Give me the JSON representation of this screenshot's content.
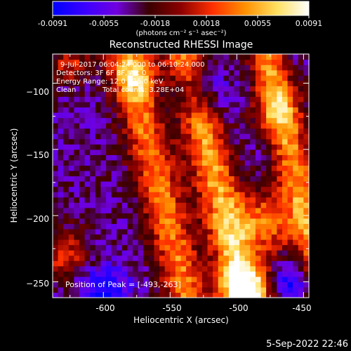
{
  "colorbar": {
    "tick_labels": [
      "-0.0091",
      "-0.0055",
      "-0.0018",
      "0.0018",
      "0.0055",
      "0.0091"
    ],
    "unit_label": "(photons cm⁻² s⁻¹ asec⁻²)",
    "range": [
      -0.0091,
      0.0091
    ],
    "colors": [
      "#0000ff",
      "#3a00ff",
      "#7000e0",
      "#3a0000",
      "#8b0000",
      "#ff3000",
      "#ff9000",
      "#ffe060",
      "#ffffff"
    ]
  },
  "chart_data": {
    "type": "heatmap",
    "title": "Reconstructed RHESSI Image",
    "xlabel": "Heliocentric X (arcsec)",
    "ylabel": "Heliocentric Y (arcsec)",
    "xlim": [
      -638,
      -446
    ],
    "ylim": [
      -262,
      -78
    ],
    "x_ticks": [
      -600,
      -550,
      -500,
      -450
    ],
    "y_ticks": [
      -100,
      -150,
      -200,
      -250
    ],
    "x_tick_labels": [
      "-600",
      "-550",
      "-500",
      "-450"
    ],
    "y_tick_labels": [
      "−100",
      "−150",
      "−200",
      "−250"
    ],
    "peak_position": [
      -493,
      -263
    ],
    "grid_resolution_arcsec": 4
  },
  "annotations": {
    "line1": "9-Jul-2017 06:04:24.000 to 06:10:24.000",
    "line2": "Detectors: 3F 6F 8F, Att 0",
    "line3": "Energy Range: 12.0 - 25.0 keV",
    "line4a": "Clean",
    "line4b": "Total counts: 3.28E+04",
    "peak_label": "Position of Peak = [-493,-263]"
  },
  "footer": {
    "timestamp": "5-Sep-2022 22:46"
  }
}
